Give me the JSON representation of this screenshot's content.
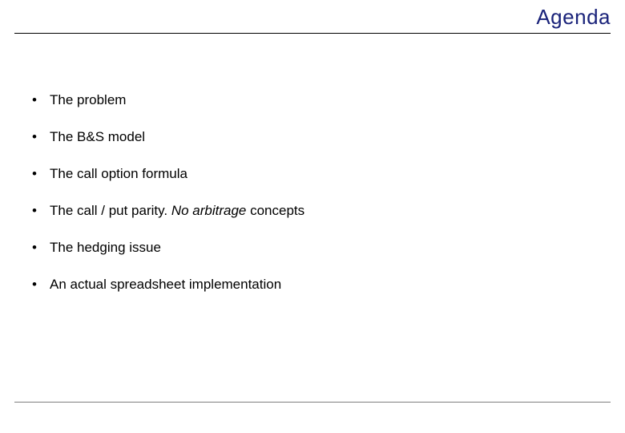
{
  "slide": {
    "title": "Agenda",
    "title_color": "#1a237a",
    "title_fontsize": 26,
    "background_color": "#ffffff",
    "body_fontsize": 17,
    "bullets": [
      {
        "text": "The problem"
      },
      {
        "text": "The B&S model"
      },
      {
        "text": "The call option formula"
      },
      {
        "prefix": "The call / put parity. ",
        "italic": "No arbitrage",
        "suffix": " concepts"
      },
      {
        "text": "The hedging issue"
      },
      {
        "text": "An actual spreadsheet implementation"
      }
    ],
    "divider_color_top": "#000000",
    "divider_color_bottom": "#808080"
  }
}
